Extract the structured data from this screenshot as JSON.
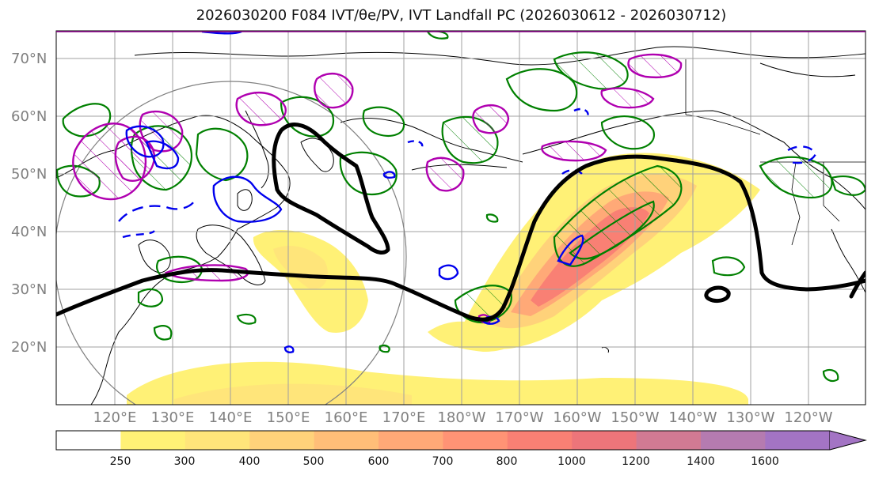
{
  "title": "2026030200 F084 IVT/θe/PV, IVT Landfall PC (2026030612 - 2026030712)",
  "latitude_labels": [
    "70°N",
    "60°N",
    "50°N",
    "40°N",
    "30°N",
    "20°N"
  ],
  "longitude_labels": [
    "120°E",
    "130°E",
    "140°E",
    "150°E",
    "160°E",
    "170°E",
    "180°W",
    "170°W",
    "160°W",
    "150°W",
    "140°W",
    "130°W",
    "120°W"
  ],
  "colorbar": {
    "levels": [
      "250",
      "300",
      "400",
      "500",
      "600",
      "700",
      "800",
      "1000",
      "1200",
      "1400",
      "1600"
    ],
    "colors": [
      "#fff176",
      "#ffe57a",
      "#ffd27a",
      "#ffbe78",
      "#ffa977",
      "#ff9375",
      "#f98074",
      "#ed757a",
      "#d17a93",
      "#b57bb0",
      "#a374c4"
    ]
  },
  "colors": {
    "landfall_contour": "#000000",
    "theta_e": "#008000",
    "pv_positive": "#b000b0",
    "pv_negative": "#0000ee",
    "coastline": "#000000",
    "gridline": "#a0a0a0"
  }
}
